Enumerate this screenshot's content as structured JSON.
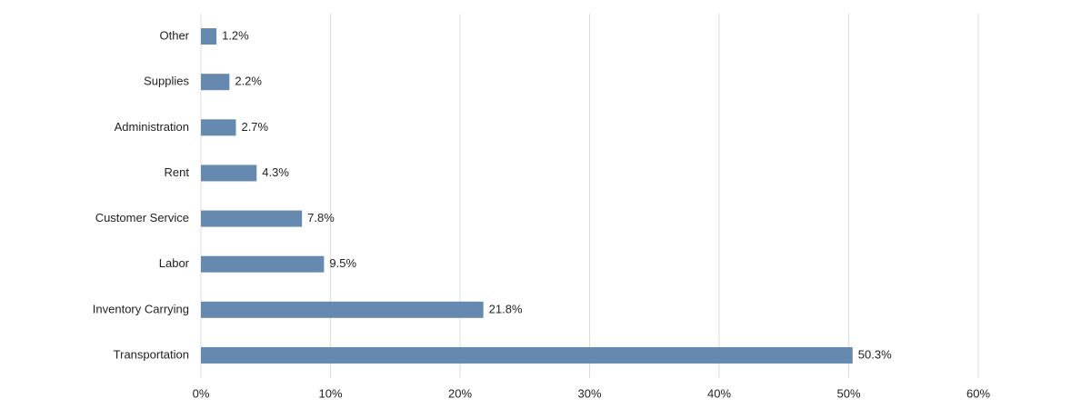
{
  "chart_data": {
    "type": "bar",
    "orientation": "horizontal",
    "categories": [
      "Other",
      "Supplies",
      "Administration",
      "Rent",
      "Customer Service",
      "Labor",
      "Inventory Carrying",
      "Transportation"
    ],
    "values": [
      1.2,
      2.2,
      2.7,
      4.3,
      7.8,
      9.5,
      21.8,
      50.3
    ],
    "value_labels": [
      "1.2%",
      "2.2%",
      "2.7%",
      "4.3%",
      "7.8%",
      "9.5%",
      "21.8%",
      "50.3%"
    ],
    "color": "#6689b0",
    "xlim": [
      0,
      60
    ],
    "xticks": [
      {
        "value": 0,
        "label": "0%"
      },
      {
        "value": 10,
        "label": "10%"
      },
      {
        "value": 20,
        "label": "20%"
      },
      {
        "value": 30,
        "label": "30%"
      },
      {
        "value": 40,
        "label": "40%"
      },
      {
        "value": 50,
        "label": "50%"
      },
      {
        "value": 60,
        "label": "60%"
      }
    ],
    "grid": true
  }
}
